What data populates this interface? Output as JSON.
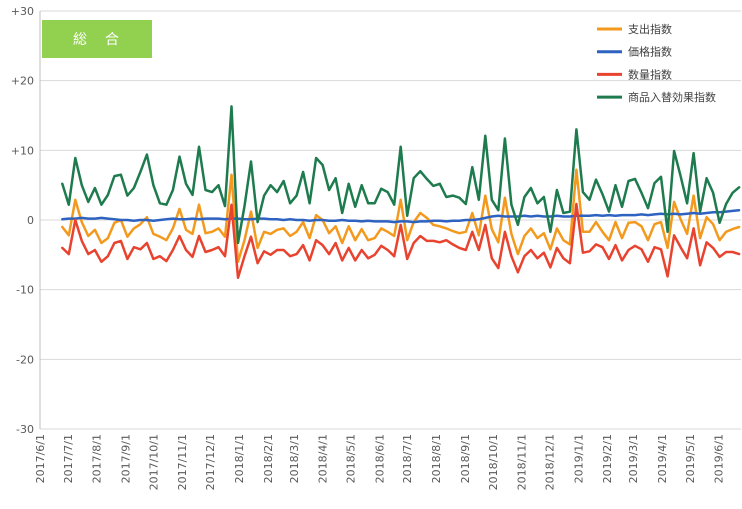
{
  "colors": {
    "background": "#FFFFFF",
    "grid": "#D9D9D9",
    "axis": "#BFBFBF",
    "badge": "#92D050",
    "badge_text": "#FFFFFF"
  },
  "chart_data": {
    "type": "line",
    "panel_label": "総　合",
    "ylim": [
      -30,
      30
    ],
    "ytick_values": [
      30,
      20,
      10,
      0,
      -10,
      -20,
      -30
    ],
    "yticks": [
      "+30",
      "+20",
      "+10",
      "0",
      "-10",
      "-20",
      "-30"
    ],
    "xlim": [
      "2017/6/1",
      "2019/6/25"
    ],
    "xticks": [
      "2017/6/1",
      "2017/7/1",
      "2017/8/1",
      "2017/9/1",
      "2017/10/1",
      "2017/11/1",
      "2017/12/1",
      "2018/1/1",
      "2018/2/1",
      "2018/3/1",
      "2018/4/1",
      "2018/5/1",
      "2018/6/1",
      "2018/7/1",
      "2018/8/1",
      "2018/9/1",
      "2018/10/1",
      "2018/11/1",
      "2018/12/1",
      "2019/1/1",
      "2019/2/1",
      "2019/3/1",
      "2019/4/1",
      "2019/5/1",
      "2019/6/1"
    ],
    "grid": true,
    "legend": "top-right",
    "x": [
      "2017/6/25",
      "2017/7/2",
      "2017/7/9",
      "2017/7/16",
      "2017/7/23",
      "2017/7/30",
      "2017/8/6",
      "2017/8/13",
      "2017/8/20",
      "2017/8/27",
      "2017/9/3",
      "2017/9/10",
      "2017/9/17",
      "2017/9/24",
      "2017/10/1",
      "2017/10/8",
      "2017/10/15",
      "2017/10/22",
      "2017/10/29",
      "2017/11/5",
      "2017/11/12",
      "2017/11/19",
      "2017/11/26",
      "2017/12/3",
      "2017/12/10",
      "2017/12/17",
      "2017/12/24",
      "2017/12/31",
      "2018/1/7",
      "2018/1/14",
      "2018/1/21",
      "2018/1/28",
      "2018/2/4",
      "2018/2/11",
      "2018/2/18",
      "2018/2/25",
      "2018/3/4",
      "2018/3/11",
      "2018/3/18",
      "2018/3/25",
      "2018/4/1",
      "2018/4/8",
      "2018/4/15",
      "2018/4/22",
      "2018/4/29",
      "2018/5/6",
      "2018/5/13",
      "2018/5/20",
      "2018/5/27",
      "2018/6/3",
      "2018/6/10",
      "2018/6/17",
      "2018/6/24",
      "2018/7/1",
      "2018/7/8",
      "2018/7/15",
      "2018/7/22",
      "2018/7/29",
      "2018/8/5",
      "2018/8/12",
      "2018/8/19",
      "2018/8/26",
      "2018/9/2",
      "2018/9/9",
      "2018/9/16",
      "2018/9/23",
      "2018/9/30",
      "2018/10/7",
      "2018/10/14",
      "2018/10/21",
      "2018/10/28",
      "2018/11/4",
      "2018/11/11",
      "2018/11/18",
      "2018/11/25",
      "2018/12/2",
      "2018/12/9",
      "2018/12/16",
      "2018/12/23",
      "2018/12/30",
      "2019/1/6",
      "2019/1/13",
      "2019/1/20",
      "2019/1/27",
      "2019/2/3",
      "2019/2/10",
      "2019/2/17",
      "2019/2/24",
      "2019/3/3",
      "2019/3/10",
      "2019/3/17",
      "2019/3/24",
      "2019/3/31",
      "2019/4/7",
      "2019/4/14",
      "2019/4/21",
      "2019/4/28",
      "2019/5/5",
      "2019/5/12",
      "2019/5/19",
      "2019/5/26",
      "2019/6/2",
      "2019/6/9",
      "2019/6/16",
      "2019/6/23"
    ],
    "series": [
      {
        "name": "支出指数",
        "color": "#F39A1E",
        "values": [
          -1.0,
          -2.2,
          2.9,
          -0.3,
          -2.3,
          -1.4,
          -3.3,
          -2.6,
          -0.4,
          0.0,
          -2.4,
          -1.2,
          -0.6,
          0.4,
          -2.0,
          -2.4,
          -2.9,
          -1.2,
          1.6,
          -1.4,
          -2.0,
          2.2,
          -1.9,
          -1.7,
          -1.2,
          -2.4,
          6.5,
          -6.0,
          -2.9,
          1.2,
          -4.0,
          -1.7,
          -2.0,
          -1.4,
          -1.2,
          -2.3,
          -1.7,
          -0.3,
          -2.6,
          0.7,
          0.0,
          -1.9,
          -0.9,
          -3.3,
          -0.9,
          -2.9,
          -1.3,
          -2.9,
          -2.6,
          -1.2,
          -1.7,
          -2.3,
          2.9,
          -2.9,
          -0.3,
          1.0,
          0.3,
          -0.7,
          -0.9,
          -1.2,
          -1.6,
          -1.9,
          -1.7,
          1.0,
          -2.2,
          3.5,
          -1.3,
          -3.2,
          3.2,
          -2.0,
          -4.9,
          -2.3,
          -1.2,
          -2.6,
          -1.9,
          -4.2,
          -1.2,
          -2.9,
          -3.5,
          7.2,
          -1.7,
          -1.7,
          -0.3,
          -1.7,
          -2.9,
          -0.3,
          -2.6,
          -0.4,
          -0.3,
          -0.9,
          -2.9,
          -0.6,
          -0.3,
          -4.0,
          2.6,
          0.1,
          -2.0,
          3.5,
          -2.6,
          0.4,
          -0.6,
          -2.9,
          -1.7,
          -1.3,
          -1.0
        ]
      },
      {
        "name": "価格指数",
        "color": "#2E62C0",
        "values": [
          0.1,
          0.2,
          0.2,
          0.3,
          0.2,
          0.2,
          0.3,
          0.2,
          0.1,
          0.0,
          0.0,
          -0.1,
          0.0,
          0.0,
          -0.1,
          0.0,
          0.1,
          0.2,
          0.1,
          0.1,
          0.2,
          0.1,
          0.2,
          0.2,
          0.2,
          0.1,
          0.2,
          0.2,
          0.1,
          0.1,
          0.2,
          0.2,
          0.1,
          0.1,
          0.0,
          0.1,
          0.0,
          0.0,
          -0.1,
          0.0,
          0.0,
          -0.1,
          -0.1,
          0.0,
          -0.1,
          -0.1,
          -0.2,
          -0.1,
          -0.2,
          -0.2,
          -0.2,
          -0.3,
          -0.2,
          -0.2,
          -0.3,
          -0.2,
          -0.2,
          -0.1,
          -0.1,
          -0.2,
          -0.1,
          -0.1,
          0.0,
          0.0,
          0.1,
          0.3,
          0.5,
          0.6,
          0.5,
          0.5,
          0.5,
          0.6,
          0.5,
          0.6,
          0.5,
          0.5,
          0.6,
          0.5,
          0.5,
          0.6,
          0.6,
          0.6,
          0.7,
          0.6,
          0.7,
          0.6,
          0.7,
          0.7,
          0.7,
          0.8,
          0.7,
          0.8,
          0.9,
          0.8,
          0.9,
          0.8,
          0.9,
          1.0,
          0.9,
          1.0,
          1.1,
          1.1,
          1.2,
          1.3,
          1.4
        ]
      },
      {
        "name": "数量指数",
        "color": "#E8432F",
        "values": [
          -4.0,
          -4.9,
          0.0,
          -3.0,
          -4.9,
          -4.3,
          -6.0,
          -5.2,
          -3.3,
          -3.0,
          -5.6,
          -3.9,
          -4.2,
          -3.3,
          -5.6,
          -5.2,
          -5.9,
          -4.3,
          -2.3,
          -4.3,
          -5.3,
          -2.3,
          -4.6,
          -4.3,
          -3.9,
          -5.2,
          2.2,
          -8.3,
          -5.2,
          -2.4,
          -6.2,
          -4.5,
          -5.0,
          -4.3,
          -4.3,
          -5.2,
          -4.9,
          -3.6,
          -5.8,
          -2.9,
          -3.6,
          -4.9,
          -3.3,
          -5.8,
          -4.0,
          -5.8,
          -4.3,
          -5.5,
          -5.0,
          -3.7,
          -4.3,
          -5.2,
          -0.7,
          -5.6,
          -3.3,
          -2.3,
          -3.0,
          -3.0,
          -3.2,
          -2.9,
          -3.5,
          -4.0,
          -4.3,
          -1.7,
          -4.3,
          -0.7,
          -5.5,
          -6.9,
          -1.7,
          -5.2,
          -7.5,
          -5.2,
          -4.3,
          -5.5,
          -4.7,
          -6.8,
          -4.0,
          -5.5,
          -6.2,
          2.3,
          -4.7,
          -4.5,
          -3.5,
          -3.9,
          -5.6,
          -3.6,
          -5.8,
          -4.3,
          -3.7,
          -4.2,
          -6.0,
          -3.9,
          -4.2,
          -8.1,
          -2.2,
          -3.9,
          -5.5,
          -1.2,
          -6.5,
          -3.2,
          -4.0,
          -5.3,
          -4.6,
          -4.6,
          -4.9
        ]
      },
      {
        "name": "商品入替効果指数",
        "color": "#1E7B4E",
        "values": [
          5.2,
          2.2,
          8.9,
          5.0,
          2.6,
          4.6,
          2.2,
          3.6,
          6.3,
          6.5,
          3.5,
          4.6,
          6.9,
          9.4,
          5.0,
          2.4,
          2.2,
          4.3,
          9.1,
          5.2,
          3.6,
          10.5,
          4.3,
          4.0,
          5.0,
          2.0,
          16.3,
          -3.3,
          2.0,
          8.4,
          -0.3,
          3.5,
          5.0,
          4.0,
          5.6,
          2.4,
          3.5,
          6.9,
          2.4,
          8.9,
          7.9,
          4.3,
          6.0,
          1.0,
          5.2,
          1.9,
          5.0,
          2.4,
          2.4,
          4.5,
          4.0,
          2.2,
          10.5,
          0.6,
          6.0,
          7.0,
          5.9,
          4.9,
          5.2,
          3.3,
          3.5,
          3.2,
          2.3,
          7.6,
          2.9,
          12.1,
          2.9,
          1.4,
          11.7,
          2.2,
          -0.7,
          3.3,
          4.6,
          2.4,
          3.3,
          -1.7,
          4.3,
          1.0,
          1.2,
          13.0,
          4.0,
          2.9,
          5.8,
          3.7,
          1.2,
          5.0,
          1.9,
          5.6,
          5.9,
          3.9,
          1.7,
          5.3,
          6.2,
          -1.7,
          9.9,
          6.3,
          2.4,
          9.6,
          1.2,
          6.0,
          3.9,
          -0.4,
          2.3,
          3.9,
          4.7
        ]
      }
    ]
  }
}
